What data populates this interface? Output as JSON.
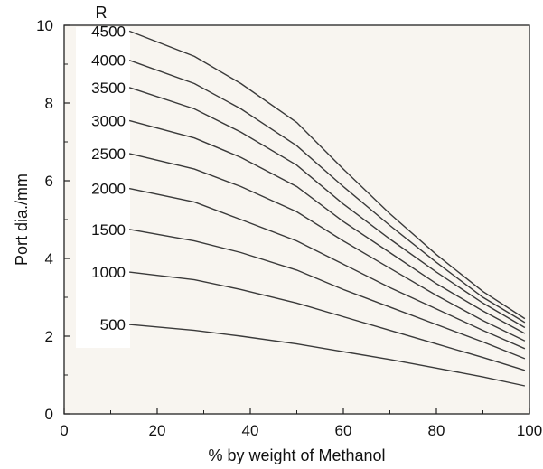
{
  "chart_data": {
    "type": "line",
    "title": "",
    "xlabel": "% by weight of Methanol",
    "ylabel": "Port dia./mm",
    "legend_title": "R",
    "xlim": [
      0,
      100
    ],
    "ylim": [
      0,
      10
    ],
    "xticks": [
      0,
      20,
      40,
      60,
      80,
      100
    ],
    "yticks": [
      0,
      2,
      4,
      6,
      8,
      10
    ],
    "grid": false,
    "colors": {
      "plot_bg": "#f8f5f0",
      "line": "#3a3a3a",
      "label_bg": "#ffffff"
    },
    "series": [
      {
        "name": "500",
        "x": [
          14,
          28,
          38,
          50,
          60,
          70,
          80,
          90,
          99
        ],
        "y": [
          2.3,
          2.15,
          2.0,
          1.8,
          1.6,
          1.4,
          1.18,
          0.95,
          0.72
        ]
      },
      {
        "name": "1000",
        "x": [
          14,
          28,
          38,
          50,
          60,
          70,
          80,
          90,
          99
        ],
        "y": [
          3.65,
          3.45,
          3.2,
          2.85,
          2.5,
          2.15,
          1.8,
          1.45,
          1.12
        ]
      },
      {
        "name": "1500",
        "x": [
          14,
          28,
          38,
          50,
          60,
          70,
          80,
          90,
          99
        ],
        "y": [
          4.75,
          4.45,
          4.15,
          3.7,
          3.2,
          2.75,
          2.3,
          1.85,
          1.42
        ]
      },
      {
        "name": "2000",
        "x": [
          14,
          28,
          38,
          50,
          60,
          70,
          80,
          90,
          99
        ],
        "y": [
          5.8,
          5.45,
          5.0,
          4.45,
          3.85,
          3.25,
          2.7,
          2.15,
          1.68
        ]
      },
      {
        "name": "2500",
        "x": [
          14,
          28,
          38,
          50,
          60,
          70,
          80,
          90,
          99
        ],
        "y": [
          6.7,
          6.3,
          5.85,
          5.2,
          4.45,
          3.75,
          3.05,
          2.4,
          1.88
        ]
      },
      {
        "name": "3000",
        "x": [
          14,
          28,
          38,
          50,
          60,
          70,
          80,
          90,
          99
        ],
        "y": [
          7.55,
          7.1,
          6.6,
          5.85,
          4.95,
          4.15,
          3.35,
          2.65,
          2.07
        ]
      },
      {
        "name": "3500",
        "x": [
          14,
          28,
          38,
          50,
          60,
          70,
          80,
          90,
          99
        ],
        "y": [
          8.4,
          7.85,
          7.25,
          6.4,
          5.4,
          4.5,
          3.65,
          2.85,
          2.22
        ]
      },
      {
        "name": "4000",
        "x": [
          14,
          28,
          38,
          50,
          60,
          70,
          80,
          90,
          99
        ],
        "y": [
          9.1,
          8.5,
          7.85,
          6.9,
          5.85,
          4.85,
          3.9,
          3.0,
          2.35
        ]
      },
      {
        "name": "4500",
        "x": [
          14,
          28,
          38,
          50,
          60,
          70,
          80,
          90,
          99
        ],
        "y": [
          9.85,
          9.2,
          8.5,
          7.5,
          6.3,
          5.15,
          4.1,
          3.15,
          2.45
        ]
      }
    ]
  }
}
